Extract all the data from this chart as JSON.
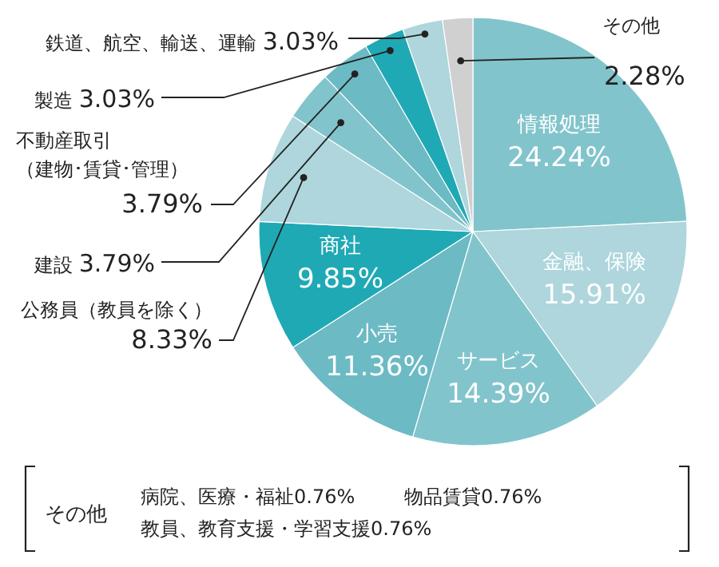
{
  "chart_data": {
    "type": "pie",
    "categories": [
      "情報処理",
      "金融、保険",
      "サービス",
      "小売",
      "商社",
      "公務員（教員を除く）",
      "建設",
      "不動産取引（建物･賃貸･管理）",
      "製造",
      "鉄道、航空、輸送、運輸",
      "その他"
    ],
    "values": [
      24.24,
      15.91,
      14.39,
      11.36,
      9.85,
      8.33,
      3.79,
      3.79,
      3.03,
      3.03,
      2.28
    ],
    "value_labels": [
      "24.24%",
      "15.91%",
      "14.39%",
      "11.36%",
      "9.85%",
      "8.33%",
      "3.79%",
      "3.79%",
      "3.03%",
      "3.03%",
      "2.28%"
    ],
    "colors": [
      "#82c4cc",
      "#aed6dc",
      "#82c4cc",
      "#6cbac4",
      "#1fa9b4",
      "#aed6dc",
      "#82c4cc",
      "#6cbac4",
      "#1fa9b4",
      "#aed6dc",
      "#d0d0d0"
    ],
    "annotations": [
      "その他",
      "病院、医療・福祉0.76%",
      "物品賃貸0.76%",
      "教員、教育支援・学習支援0.76%"
    ]
  }
}
